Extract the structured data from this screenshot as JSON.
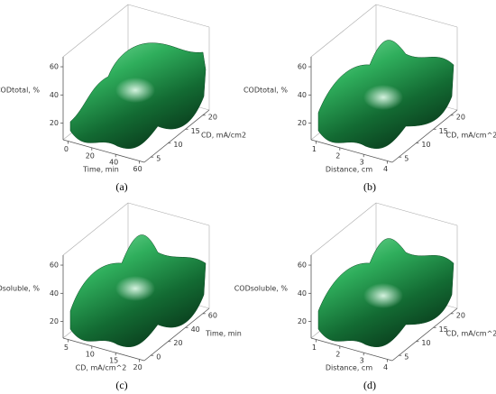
{
  "panels": [
    {
      "caption": "(a)",
      "z_label": "CODtotal, %",
      "z_ticks": [
        20,
        40,
        60
      ],
      "x_label": "Time, min",
      "x_ticks": [
        0,
        20,
        40,
        60
      ],
      "y_label": "CD, mA/cm2",
      "y_ticks": [
        5,
        10,
        15,
        20
      ]
    },
    {
      "caption": "(b)",
      "z_label": "CODtotal, %",
      "z_ticks": [
        20,
        40,
        60
      ],
      "x_label": "Distance, cm",
      "x_ticks": [
        1,
        2,
        3,
        4
      ],
      "y_label": "CD, mA/cm^2",
      "y_ticks": [
        5,
        10,
        15,
        20
      ]
    },
    {
      "caption": "(c)",
      "z_label": "CODsoluble, %",
      "z_ticks": [
        20,
        40,
        60
      ],
      "x_label": "CD, mA/cm^2",
      "x_ticks": [
        5,
        10,
        15,
        20
      ],
      "y_label": "Time, min",
      "y_ticks": [
        0,
        20,
        40,
        60
      ]
    },
    {
      "caption": "(d)",
      "z_label": "CODsoluble, %",
      "z_ticks": [
        20,
        40,
        60
      ],
      "x_label": "Distance, cm",
      "x_ticks": [
        1,
        2,
        3,
        4
      ],
      "y_label": "CD, mA/cm^2",
      "y_ticks": [
        5,
        10,
        15,
        20
      ]
    }
  ]
}
